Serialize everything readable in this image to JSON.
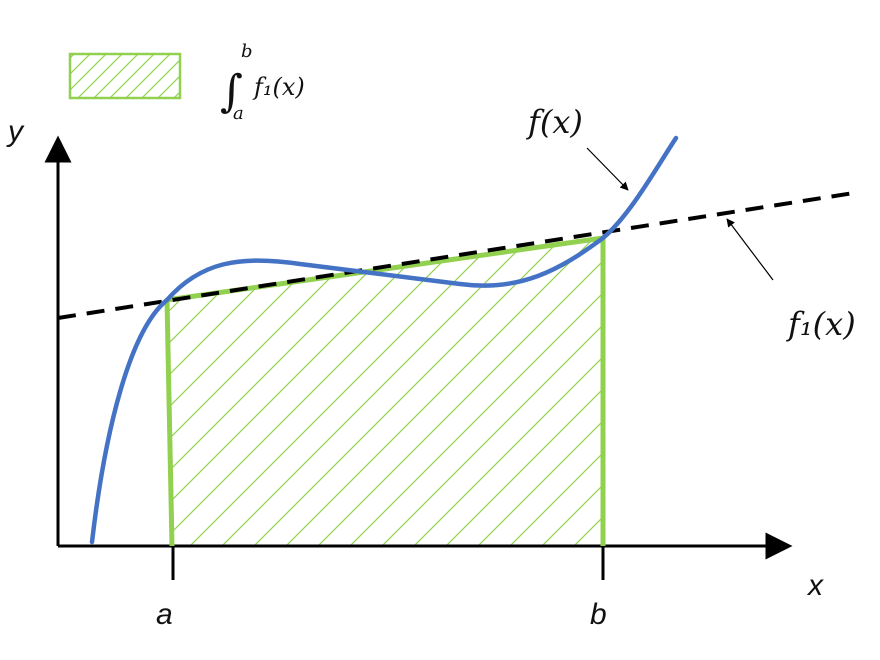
{
  "labels": {
    "y_axis": "y",
    "x_axis": "x",
    "a": "a",
    "b": "b",
    "f_curve": "f(x)",
    "f1_line": "f₁(x)"
  },
  "legend": {
    "integral_sign": "∫",
    "upper_limit": "b",
    "lower_limit": "a",
    "integrand": "f₁(x)"
  },
  "colors": {
    "curve": "#4472c4",
    "trapezoid": "#92d050",
    "hatch": "#92d050",
    "line": "#000000",
    "axes": "#000000"
  },
  "icons": {
    "legend_swatch": "hatched-rectangle",
    "arrow_f": "arrow",
    "arrow_f1": "arrow"
  }
}
